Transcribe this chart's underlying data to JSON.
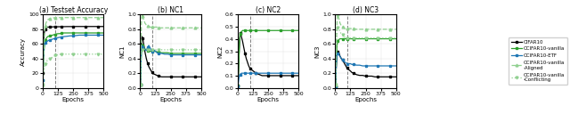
{
  "title_a": "(a) Testset Accuracy",
  "title_b": "(b) NC1",
  "title_c": "(c) NC2",
  "title_d": "(d) NC3",
  "ylabel_a": "Accuracy",
  "ylabel_b": "NC1",
  "ylabel_c": "NC2",
  "ylabel_d": "NC3",
  "xlabel": "Epochs",
  "vline_epoch": 100,
  "legend_labels": [
    "CIFAR10",
    "CCIFAR10-vanilla",
    "CCIFAR10-ETF",
    "CCIFAR10-vanilla\n-Aligned",
    "CCIFAR10-vanilla\n-Conflicting"
  ],
  "colors": [
    "black",
    "#2ca02c",
    "#1f77b4",
    "#90d090",
    "#90d090"
  ],
  "markers": [
    "s",
    "s",
    "s",
    "^",
    "v"
  ],
  "linestyles": [
    "-",
    "-",
    "-",
    "--",
    ":"
  ],
  "acc_ylim": [
    0,
    100
  ],
  "nc1_ylim": [
    0.0,
    1.0
  ],
  "nc2_ylim": [
    0.0,
    0.6
  ],
  "nc3_ylim": [
    0.0,
    1.0
  ],
  "acc_yticks": [
    0,
    20,
    40,
    60,
    80,
    100
  ],
  "nc1_yticks": [
    0.0,
    0.2,
    0.4,
    0.6,
    0.8,
    1.0
  ],
  "nc2_yticks": [
    0.0,
    0.1,
    0.2,
    0.3,
    0.4,
    0.5,
    0.6
  ],
  "nc3_yticks": [
    0.0,
    0.2,
    0.4,
    0.6,
    0.8,
    1.0
  ]
}
